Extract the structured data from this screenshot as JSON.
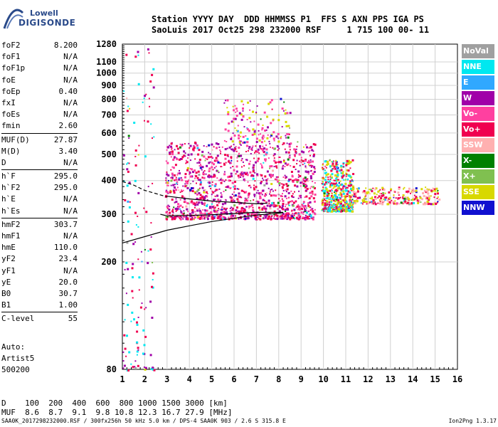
{
  "logo": {
    "line1": "Lowell",
    "line2": "DIGISONDE"
  },
  "header": {
    "line1": "Station YYYY DAY  DDD HHMMSS P1  FFS S AXN PPS IGA PS",
    "line2": "SaoLuis 2017 Oct25 298 232000 RSF     1 715 100 00- 11"
  },
  "params": [
    {
      "group": [
        {
          "name": "foF2",
          "value": "8.200"
        },
        {
          "name": "foF1",
          "value": "N/A"
        },
        {
          "name": "foF1p",
          "value": "N/A"
        },
        {
          "name": "foE",
          "value": "N/A"
        },
        {
          "name": "foEp",
          "value": "0.40"
        },
        {
          "name": "fxI",
          "value": "N/A"
        },
        {
          "name": "foEs",
          "value": "N/A"
        },
        {
          "name": "fmin",
          "value": "2.60"
        }
      ]
    },
    {
      "group": [
        {
          "name": "MUF(D)",
          "value": "27.87"
        },
        {
          "name": "M(D)",
          "value": "3.40"
        },
        {
          "name": "D",
          "value": "N/A"
        }
      ]
    },
    {
      "group": [
        {
          "name": "h`F",
          "value": "295.0"
        },
        {
          "name": "h`F2",
          "value": "295.0"
        },
        {
          "name": "h`E",
          "value": "N/A"
        },
        {
          "name": "h`Es",
          "value": "N/A"
        }
      ]
    },
    {
      "group": [
        {
          "name": "hmF2",
          "value": "303.7"
        },
        {
          "name": "hmF1",
          "value": "N/A"
        },
        {
          "name": "hmE",
          "value": "110.0"
        },
        {
          "name": "yF2",
          "value": "23.4"
        },
        {
          "name": "yF1",
          "value": "N/A"
        },
        {
          "name": "yE",
          "value": "20.0"
        },
        {
          "name": "B0",
          "value": "30.7"
        },
        {
          "name": "B1",
          "value": "1.00"
        }
      ]
    },
    {
      "group": [
        {
          "name": "C-level",
          "value": "55"
        }
      ]
    }
  ],
  "auto": {
    "line1": "Auto:",
    "line2": "Artist5",
    "line3": "500200"
  },
  "bottom_table": {
    "d_line": "D    100  200  400  600  800 1000 1500 3000 [km]",
    "muf_line": "MUF  8.6  8.7  9.1  9.8 10.8 12.3 16.7 27.9 [MHz]"
  },
  "footer": {
    "left": "SAA0K_2017298232000.RSF / 300fx256h 50 kHz 5.0 km / DPS-4 SAA0K 903 / 2.6 S 315.8 E",
    "right": "Ion2Png 1.3.17"
  },
  "legend": [
    {
      "label": "NoVal",
      "color": "#a0a0a0"
    },
    {
      "label": "NNE",
      "color": "#00e8f0"
    },
    {
      "label": "E",
      "color": "#30a8ff"
    },
    {
      "label": "W",
      "color": "#a000a8"
    },
    {
      "label": "Vo-",
      "color": "#ff40a0"
    },
    {
      "label": "Vo+",
      "color": "#f00050"
    },
    {
      "label": "SSW",
      "color": "#ffb0b0"
    },
    {
      "label": "X-",
      "color": "#008000"
    },
    {
      "label": "X+",
      "color": "#80c050"
    },
    {
      "label": "SSE",
      "color": "#d8d800"
    },
    {
      "label": "NNW",
      "color": "#1010d0"
    }
  ],
  "chart_data": {
    "type": "scatter",
    "title": "",
    "xlabel": "",
    "ylabel": "",
    "xlim": [
      1,
      16
    ],
    "ylim": [
      80,
      1280
    ],
    "yscale": "log",
    "grid": true,
    "x_ticks": [
      "1",
      "2",
      "3",
      "4",
      "5",
      "6",
      "7",
      "8",
      "9",
      "10",
      "11",
      "12",
      "13",
      "14",
      "15",
      "16"
    ],
    "y_ticks": [
      "80",
      "200",
      "300",
      "400",
      "500",
      "600",
      "700",
      "800",
      "900",
      "1000",
      "1100",
      "1280"
    ],
    "legend_position": "right",
    "clusters": [
      {
        "x": [
          2.9,
          9.6
        ],
        "y": [
          290,
          560
        ],
        "density": "very high",
        "dominant_series": [
          "Vo+",
          "Vo-",
          "W"
        ]
      },
      {
        "x": [
          5.5,
          8.5
        ],
        "y": [
          560,
          810
        ],
        "density": "sparse",
        "dominant_series": [
          "SSE",
          "W",
          "Vo-"
        ]
      },
      {
        "x": [
          9.9,
          11.3
        ],
        "y": [
          310,
          480
        ],
        "density": "high",
        "dominant_series": [
          "SSE",
          "Vo+",
          "NNE"
        ]
      },
      {
        "x": [
          11.3,
          15.2
        ],
        "y": [
          330,
          380
        ],
        "density": "medium",
        "dominant_series": [
          "Vo+",
          "SSE",
          "SSW"
        ]
      },
      {
        "x": [
          1.0,
          2.4
        ],
        "y": [
          80,
          1280
        ],
        "density": "sparse",
        "dominant_series": [
          "Vo+",
          "NNE",
          "W"
        ]
      }
    ],
    "trace_lines": [
      {
        "name": "profile-lower",
        "style": "solid",
        "x": [
          1.0,
          2.0,
          3.0,
          4.0,
          5.0,
          6.0,
          7.0,
          8.0,
          8.2
        ],
        "y": [
          235,
          248,
          262,
          272,
          282,
          290,
          298,
          303,
          304
        ]
      },
      {
        "name": "profile-dashed",
        "style": "dashed",
        "x": [
          1.0,
          1.5,
          2.0,
          2.5,
          3.0
        ],
        "y": [
          397,
          385,
          368,
          358,
          348
        ]
      },
      {
        "name": "trace-upper",
        "style": "solid",
        "x": [
          3.0,
          4.0,
          5.0,
          6.0,
          7.0,
          7.5
        ],
        "y": [
          350,
          342,
          336,
          332,
          328,
          330
        ]
      },
      {
        "name": "trace-lower",
        "style": "solid",
        "x": [
          2.7,
          3.0,
          4.0,
          5.0,
          6.0,
          7.0,
          8.0,
          8.2
        ],
        "y": [
          300,
          296,
          297,
          299,
          302,
          305,
          305,
          305
        ]
      }
    ]
  }
}
